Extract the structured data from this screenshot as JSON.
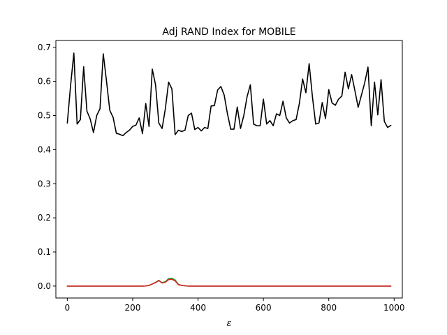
{
  "chart_data": {
    "type": "line",
    "title": "Adj RAND Index for MOBILE",
    "xlabel": "ε",
    "ylabel": "",
    "xlim": [
      -35,
      1025
    ],
    "ylim": [
      -0.035,
      0.72
    ],
    "xticks": [
      0,
      200,
      400,
      600,
      800,
      1000
    ],
    "yticks": [
      0.0,
      0.1,
      0.2,
      0.3,
      0.4,
      0.5,
      0.6,
      0.7
    ],
    "xtick_labels": [
      "0",
      "200",
      "400",
      "600",
      "800",
      "1000"
    ],
    "ytick_labels": [
      "0.0",
      "0.1",
      "0.2",
      "0.3",
      "0.4",
      "0.5",
      "0.6",
      "0.7"
    ],
    "grid": false,
    "legend": "none",
    "x": [
      0,
      10,
      20,
      30,
      40,
      50,
      60,
      70,
      80,
      90,
      100,
      110,
      120,
      130,
      140,
      150,
      160,
      170,
      180,
      190,
      200,
      210,
      220,
      230,
      240,
      250,
      260,
      270,
      280,
      290,
      300,
      310,
      320,
      330,
      340,
      350,
      360,
      370,
      380,
      390,
      400,
      410,
      420,
      430,
      440,
      450,
      460,
      470,
      480,
      490,
      500,
      510,
      520,
      530,
      540,
      550,
      560,
      570,
      580,
      590,
      600,
      610,
      620,
      630,
      640,
      650,
      660,
      670,
      680,
      690,
      700,
      710,
      720,
      730,
      740,
      750,
      760,
      770,
      780,
      790,
      800,
      810,
      820,
      830,
      840,
      850,
      860,
      870,
      880,
      890,
      900,
      910,
      920,
      930,
      940,
      950,
      960,
      970,
      980,
      990
    ],
    "series": [
      {
        "color": "#000000",
        "values": [
          0.478,
          0.588,
          0.683,
          0.475,
          0.488,
          0.643,
          0.513,
          0.49,
          0.45,
          0.5,
          0.52,
          0.681,
          0.6,
          0.515,
          0.495,
          0.448,
          0.445,
          0.441,
          0.45,
          0.457,
          0.468,
          0.472,
          0.493,
          0.447,
          0.535,
          0.468,
          0.636,
          0.59,
          0.478,
          0.462,
          0.52,
          0.598,
          0.578,
          0.444,
          0.457,
          0.453,
          0.457,
          0.5,
          0.507,
          0.459,
          0.465,
          0.455,
          0.465,
          0.462,
          0.528,
          0.529,
          0.575,
          0.585,
          0.56,
          0.505,
          0.46,
          0.46,
          0.525,
          0.462,
          0.5,
          0.555,
          0.59,
          0.475,
          0.47,
          0.47,
          0.548,
          0.475,
          0.485,
          0.47,
          0.505,
          0.5,
          0.542,
          0.493,
          0.478,
          0.485,
          0.488,
          0.535,
          0.607,
          0.567,
          0.652,
          0.555,
          0.475,
          0.478,
          0.538,
          0.491,
          0.576,
          0.537,
          0.53,
          0.548,
          0.557,
          0.627,
          0.578,
          0.62,
          0.573,
          0.524,
          0.56,
          0.596,
          0.642,
          0.47,
          0.598,
          0.502,
          0.605,
          0.483,
          0.465,
          0.471
        ]
      },
      {
        "color": "#2ca02c",
        "values": [
          0,
          0,
          0,
          0,
          0,
          0,
          0,
          0,
          0,
          0,
          0,
          0,
          0,
          0,
          0,
          0,
          0,
          0,
          0,
          0,
          0,
          0,
          0,
          0,
          0.0005,
          0.002,
          0.006,
          0.011,
          0.017,
          0.01,
          0.013,
          0.022,
          0.023,
          0.018,
          0.005,
          0.002,
          0.001,
          0,
          0,
          0,
          0,
          0,
          0,
          0,
          0,
          0,
          0,
          0,
          0,
          0,
          0,
          0,
          0,
          0,
          0,
          0,
          0,
          0,
          0,
          0,
          0,
          0,
          0,
          0,
          0,
          0,
          0,
          0,
          0,
          0,
          0,
          0,
          0,
          0,
          0,
          0,
          0,
          0,
          0,
          0,
          0,
          0,
          0,
          0,
          0,
          0,
          0,
          0,
          0,
          0,
          0,
          0,
          0,
          0,
          0,
          0,
          0,
          0,
          0,
          0
        ]
      },
      {
        "color": "#d62728",
        "values": [
          0,
          0,
          0,
          0,
          0,
          0,
          0,
          0,
          0,
          0,
          0,
          0,
          0,
          0,
          0,
          0,
          0,
          0,
          0,
          0,
          0,
          0,
          0,
          0,
          0.0005,
          0.002,
          0.006,
          0.01,
          0.016,
          0.009,
          0.011,
          0.019,
          0.02,
          0.015,
          0.004,
          0.002,
          0.001,
          0,
          0,
          0,
          0,
          0,
          0,
          0,
          0,
          0,
          0,
          0,
          0,
          0,
          0,
          0,
          0,
          0,
          0,
          0,
          0,
          0,
          0,
          0,
          0,
          0,
          0,
          0,
          0,
          0,
          0,
          0,
          0,
          0,
          0,
          0,
          0,
          0,
          0,
          0,
          0,
          0,
          0,
          0,
          0,
          0,
          0,
          0,
          0,
          0,
          0,
          0,
          0,
          0,
          0,
          0,
          0,
          0,
          0,
          0,
          0,
          0,
          0,
          0
        ]
      }
    ]
  }
}
